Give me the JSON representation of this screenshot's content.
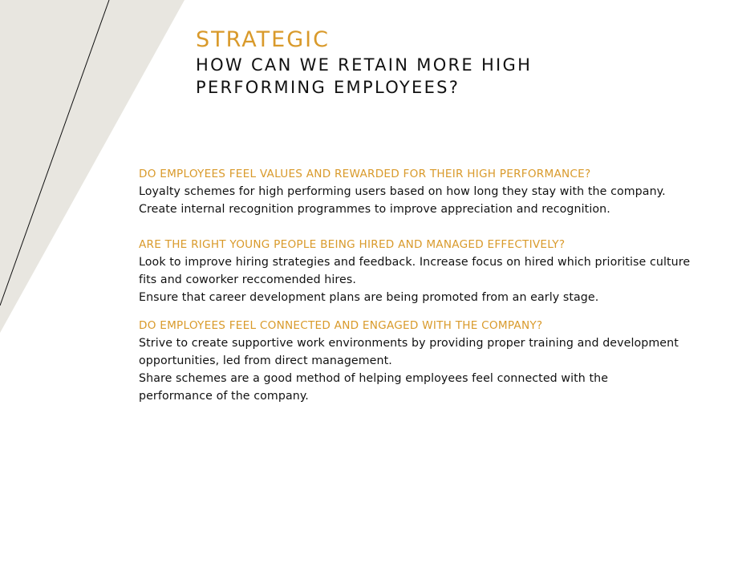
{
  "header": {
    "kicker": "STRATEGIC",
    "headline_line1": "HOW CAN WE RETAIN MORE HIGH",
    "headline_line2": "PERFORMING EMPLOYEES?"
  },
  "sections": [
    {
      "question": "DO EMPLOYEES FEEL VALUES AND REWARDED FOR THEIR HIGH PERFORMANCE?",
      "paragraphs": [
        "Loyalty schemes for high performing users based on how long they stay with the company.",
        "Create internal recognition programmes to improve appreciation and recognition."
      ]
    },
    {
      "question": "ARE THE RIGHT YOUNG PEOPLE BEING HIRED AND MANAGED EFFECTIVELY?",
      "paragraphs": [
        "Look to improve hiring strategies and feedback. Increase focus on hired which prioritise culture fits and coworker reccomended hires.",
        "Ensure that career development plans are being promoted from an early stage."
      ]
    },
    {
      "question": "DO EMPLOYEES FEEL CONNECTED AND ENGAGED WITH THE COMPANY?",
      "paragraphs": [
        "Strive to create supportive work environments by providing proper training and development opportunities, led from direct management.",
        "Share schemes are a good method of helping employees feel connected with the performance of the company."
      ]
    }
  ],
  "colors": {
    "accent": "#d99a2b",
    "text": "#111111",
    "decor_fill": "#e8e6e0",
    "decor_line": "#111111"
  }
}
